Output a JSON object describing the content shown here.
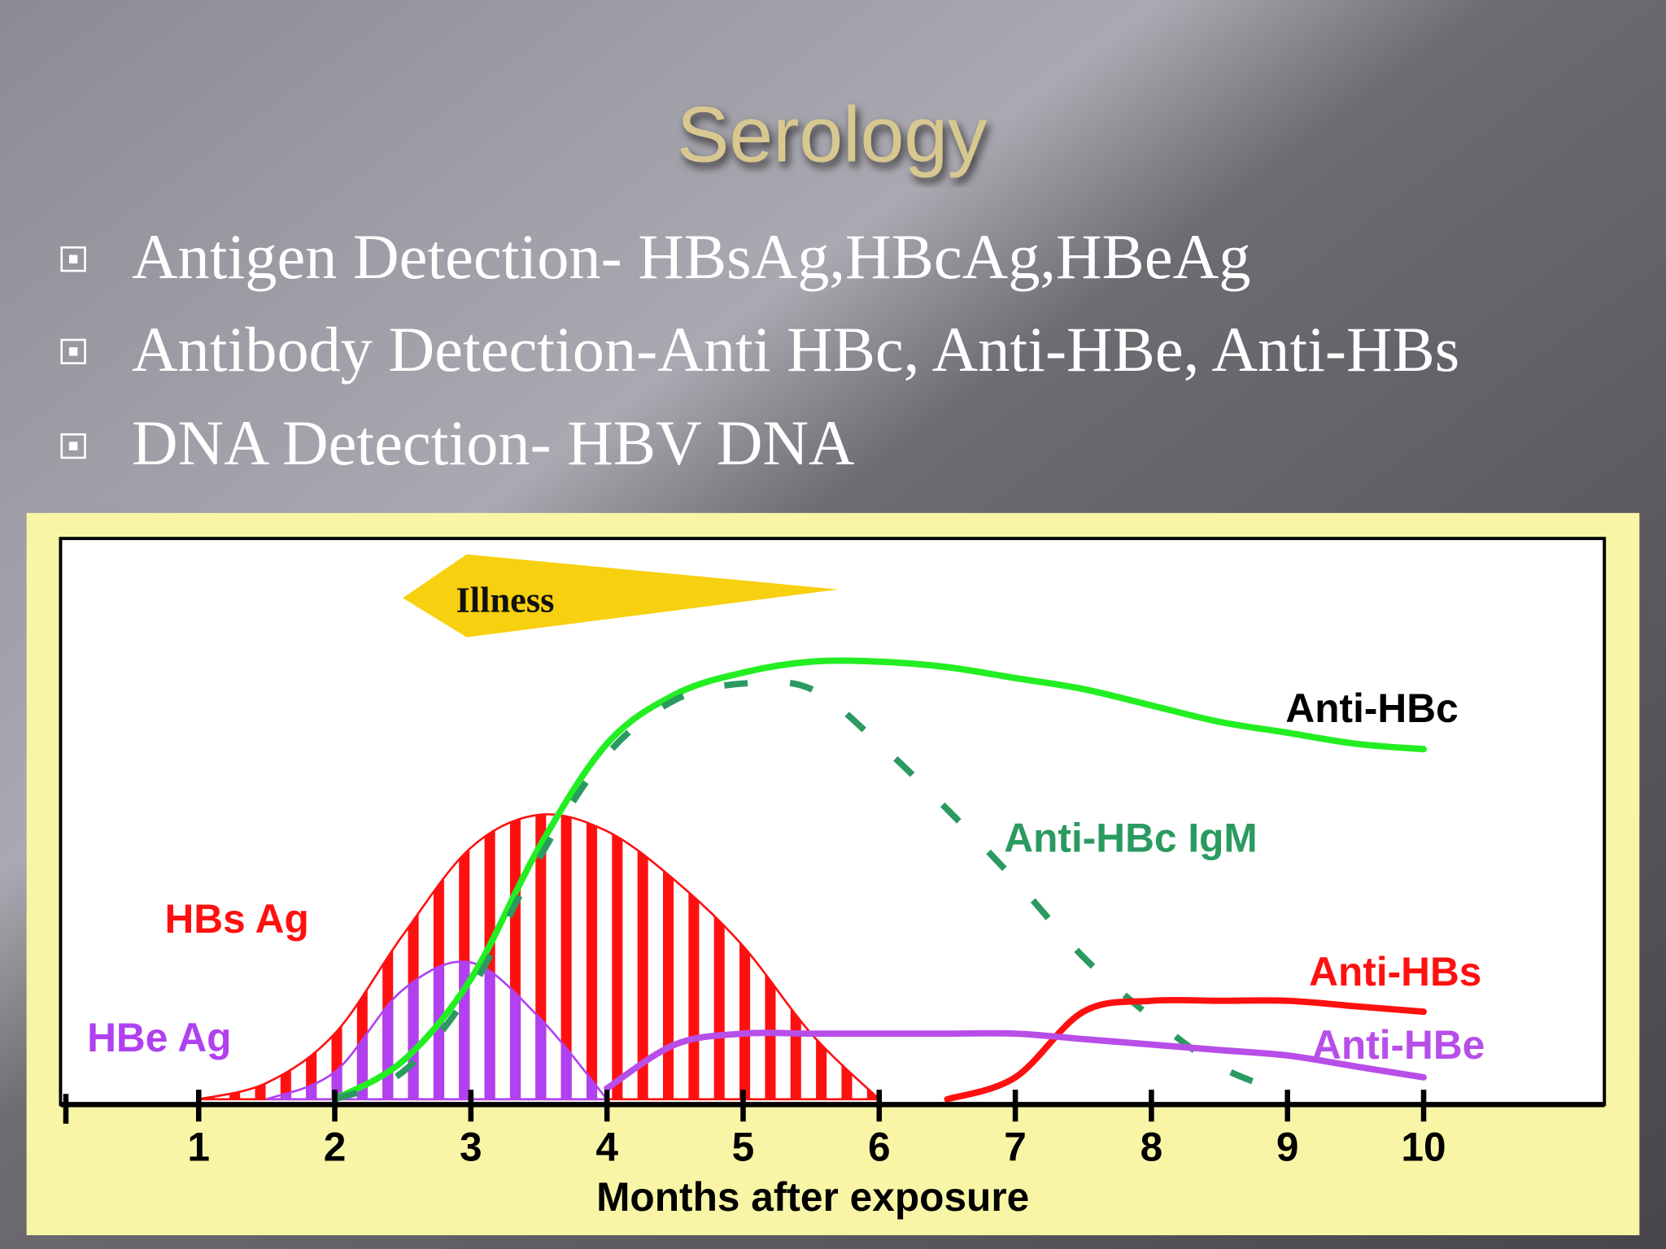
{
  "title": "Serology",
  "bullets": [
    "Antigen Detection- HBsAg,HBcAg,HBeAg",
    "Antibody Detection-Anti HBc, Anti-HBe, Anti-HBs",
    "DNA Detection- HBV DNA"
  ],
  "chart_data": {
    "type": "line",
    "x_label": "Months after exposure",
    "annotation": {
      "text": "Illness",
      "x": [
        2.5,
        5.7
      ]
    },
    "x": [
      1,
      1.5,
      2,
      2.5,
      3,
      3.5,
      4,
      4.5,
      5,
      5.5,
      6,
      6.5,
      7,
      7.5,
      8,
      8.5,
      9,
      9.5,
      10
    ],
    "xlim": [
      0,
      11.3
    ],
    "xticks": [
      1,
      2,
      3,
      4,
      5,
      6,
      7,
      8,
      9,
      10
    ],
    "ylim": [
      0,
      100
    ],
    "series": [
      {
        "name": "HBs Ag",
        "color": "#ff1010",
        "style": "hatched-area",
        "values": [
          0,
          3,
          12,
          30,
          46,
          52,
          49,
          40,
          28,
          12,
          0,
          null,
          null,
          null,
          null,
          null,
          null,
          null,
          null
        ]
      },
      {
        "name": "HBe Ag",
        "color": "#b040f0",
        "style": "hatched-area",
        "values": [
          null,
          0,
          5,
          20,
          25,
          15,
          0,
          null,
          null,
          null,
          null,
          null,
          null,
          null,
          null,
          null,
          null,
          null,
          null
        ]
      },
      {
        "name": "Anti-HBc",
        "color": "#22ee22",
        "style": "solid",
        "values": [
          null,
          null,
          0,
          7,
          22,
          46,
          65,
          74,
          78,
          80,
          80,
          79,
          77,
          75,
          72,
          69,
          67,
          65,
          64
        ]
      },
      {
        "name": "Anti-HBc IgM",
        "color": "#2a9a60",
        "style": "dashed",
        "values": [
          null,
          null,
          0,
          5,
          20,
          44,
          63,
          73,
          76,
          75,
          65,
          53,
          40,
          26,
          15,
          6,
          1,
          null,
          null
        ]
      },
      {
        "name": "Anti-HBs",
        "color": "#ff1010",
        "style": "solid",
        "values": [
          null,
          null,
          null,
          null,
          null,
          null,
          null,
          null,
          null,
          null,
          null,
          0,
          4,
          16,
          18,
          18,
          18,
          17,
          16
        ]
      },
      {
        "name": "Anti-HBe",
        "color": "#b84ee8",
        "style": "solid",
        "values": [
          null,
          null,
          null,
          null,
          null,
          null,
          2,
          10,
          12,
          12,
          12,
          12,
          12,
          11,
          10,
          9,
          8,
          6,
          4
        ]
      }
    ]
  }
}
